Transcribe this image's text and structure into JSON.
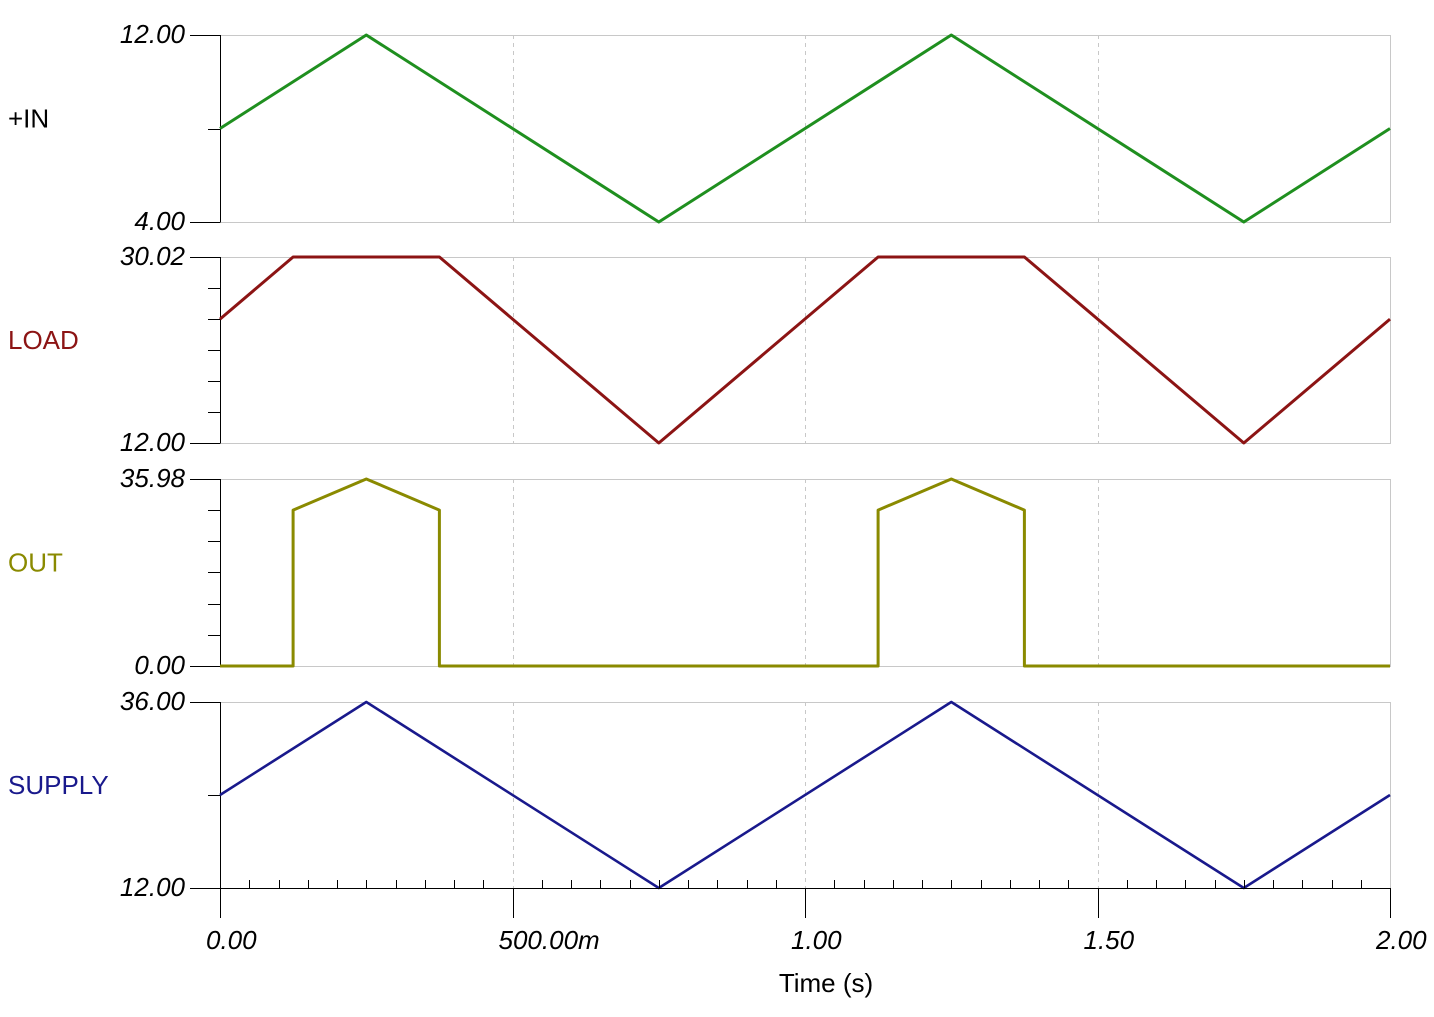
{
  "chart_data": [
    {
      "type": "line",
      "xlim": [
        0,
        2
      ],
      "xgrid": [
        0.5,
        1,
        1.5
      ],
      "ylim": [
        4,
        12
      ],
      "yticks": [
        {
          "value": 12,
          "label": "12.00"
        },
        {
          "value": 4,
          "label": "4.00"
        }
      ],
      "minor_yticks": [
        8
      ],
      "series": [
        {
          "name": "+IN",
          "color": "#1f8f1f",
          "label_color": "#000000",
          "x": [
            0,
            0.25,
            0.75,
            1.25,
            1.75,
            2
          ],
          "y": [
            8,
            12,
            4,
            12,
            4,
            8
          ]
        }
      ]
    },
    {
      "type": "line",
      "xlim": [
        0,
        2
      ],
      "xgrid": [
        0.5,
        1,
        1.5
      ],
      "ylim": [
        12,
        30.02
      ],
      "yticks": [
        {
          "value": 30.02,
          "label": "30.02"
        },
        {
          "value": 12,
          "label": "12.00"
        }
      ],
      "minor_yticks": [
        15,
        18,
        21,
        24,
        27
      ],
      "series": [
        {
          "name": "LOAD",
          "color": "#8c1414",
          "label_color": "#8c1414",
          "x": [
            0,
            0.125,
            0.375,
            0.75,
            1.125,
            1.375,
            1.75,
            2
          ],
          "y": [
            24,
            30.02,
            30.02,
            12,
            30.02,
            30.02,
            12,
            24
          ]
        }
      ]
    },
    {
      "type": "line",
      "xlim": [
        0,
        2
      ],
      "xgrid": [
        0.5,
        1,
        1.5
      ],
      "ylim": [
        0,
        35.98
      ],
      "yticks": [
        {
          "value": 35.98,
          "label": "35.98"
        },
        {
          "value": 0,
          "label": "0.00"
        }
      ],
      "minor_yticks": [
        6,
        12,
        18,
        24,
        30
      ],
      "series": [
        {
          "name": "OUT",
          "color": "#8a8a00",
          "label_color": "#8a8a00",
          "x": [
            0,
            0.125,
            0.125,
            0.25,
            0.375,
            0.375,
            1.125,
            1.125,
            1.25,
            1.375,
            1.375,
            2
          ],
          "y": [
            0,
            0,
            30,
            35.98,
            30,
            0,
            0,
            30,
            35.98,
            30,
            0,
            0
          ]
        }
      ]
    },
    {
      "type": "line",
      "xlim": [
        0,
        2
      ],
      "xgrid": [
        0.5,
        1,
        1.5
      ],
      "ylim": [
        12,
        36
      ],
      "yticks": [
        {
          "value": 36,
          "label": "36.00"
        },
        {
          "value": 12,
          "label": "12.00"
        }
      ],
      "minor_yticks": [
        24
      ],
      "xlabel": "Time (s)",
      "xticks": [
        {
          "value": 0,
          "label": "0.00"
        },
        {
          "value": 0.5,
          "label": "500.00m"
        },
        {
          "value": 1,
          "label": "1.00"
        },
        {
          "value": 1.5,
          "label": "1.50"
        },
        {
          "value": 2,
          "label": "2.00"
        }
      ],
      "series": [
        {
          "name": "SUPPLY",
          "color": "#19198c",
          "label_color": "#19198c",
          "x": [
            0,
            0.25,
            0.75,
            1.25,
            1.75,
            2
          ],
          "y": [
            24,
            36,
            12,
            36,
            12,
            24
          ]
        }
      ]
    }
  ]
}
